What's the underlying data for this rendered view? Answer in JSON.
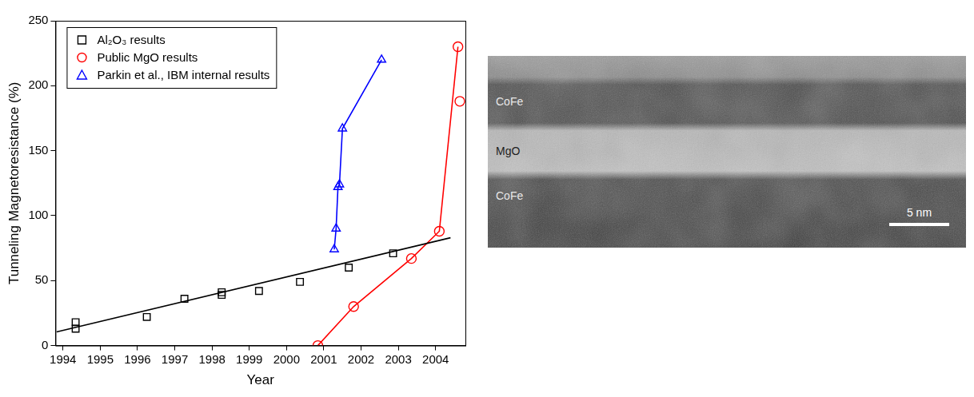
{
  "chart_data": {
    "type": "scatter",
    "x_label": "Year",
    "y_label": "Tunneling Magnetoresistance (%)",
    "xlim": [
      1993.8,
      2004.8
    ],
    "xticks": [
      1994,
      1995,
      1996,
      1997,
      1998,
      1999,
      2000,
      2001,
      2002,
      2003,
      2004
    ],
    "ylim": [
      0,
      250
    ],
    "yticks": [
      0,
      50,
      100,
      150,
      200,
      250
    ],
    "grid": false,
    "legend": "top-left",
    "series": [
      {
        "name": "Al₂O₃ results",
        "color": "#000000",
        "marker": "square",
        "line_style": "none",
        "x": [
          1994.34,
          1994.34,
          1996.25,
          1997.26,
          1998.26,
          1998.26,
          1999.26,
          2000.36,
          2001.67,
          2002.86
        ],
        "values": [
          13,
          18,
          22,
          36,
          39,
          41,
          42,
          49,
          60,
          71
        ],
        "trend": {
          "x": [
            1993.83,
            2004.4
          ],
          "values": [
            10.5,
            83
          ]
        }
      },
      {
        "name": "Public MgO results",
        "color": "#ff0000",
        "marker": "circle",
        "line_style": "none",
        "x": [
          2000.84,
          2001.8,
          2003.35,
          2004.1,
          2004.6,
          2004.65
        ],
        "values": [
          0,
          30,
          67,
          88,
          230,
          188
        ],
        "trend": {
          "x": [
            2000.84,
            2001.8,
            2003.35,
            2004.1,
            2004.6
          ],
          "values": [
            0,
            30,
            67,
            88,
            230
          ]
        }
      },
      {
        "name": "Parkin et al., IBM internal results",
        "color": "#0000ff",
        "marker": "triangle",
        "line_style": "solid",
        "x": [
          2001.28,
          2001.33,
          2001.38,
          2001.42,
          2001.5,
          2002.55
        ],
        "values": [
          74,
          90,
          122,
          124,
          167,
          220
        ]
      }
    ]
  },
  "micrograph": {
    "layers": [
      "CoFe",
      "MgO",
      "CoFe"
    ],
    "scale_bar": "5 nm"
  }
}
